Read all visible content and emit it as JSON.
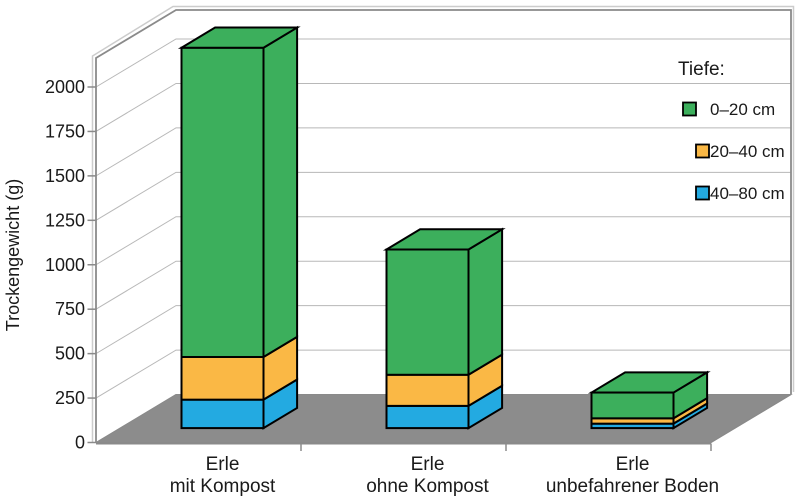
{
  "chart_data": {
    "type": "bar",
    "variant": "3d-stacked-column",
    "title": "",
    "ylabel": "Trockengewicht (g)",
    "categories": [
      {
        "line1": "Erle",
        "line2": "mit Kompost"
      },
      {
        "line1": "Erle",
        "line2": "ohne Kompost"
      },
      {
        "line1": "Erle",
        "line2": "unbefahrener Boden"
      }
    ],
    "series": [
      {
        "name": "0–20 cm",
        "color": "#3caf5c",
        "values": [
          1740,
          705,
          145
        ]
      },
      {
        "name": "20–40 cm",
        "color": "#fab845",
        "values": [
          240,
          175,
          30
        ]
      },
      {
        "name": "40–80 cm",
        "color": "#23aae1",
        "values": [
          160,
          125,
          25
        ]
      }
    ],
    "stack_bottom_to_top": [
      "40–80 cm",
      "20–40 cm",
      "0–20 cm"
    ],
    "totals": [
      2140,
      1005,
      200
    ],
    "yticks": [
      0,
      250,
      500,
      750,
      1000,
      1250,
      1500,
      1750,
      2000
    ],
    "ylim": [
      0,
      2160
    ],
    "unit": "g",
    "grid": true,
    "legend": {
      "title": "Tiefe:",
      "entries": [
        "0–20 cm",
        "20–40 cm",
        "40–80 cm"
      ],
      "position": "top-right"
    },
    "colors": {
      "wall": "#ffffff",
      "floor": "#8c8c8c",
      "gridline": "#b8b8b8",
      "frame": "#8a8a8a",
      "frame_highlight": "#cccccc",
      "bar_outline": "#000000",
      "text": "#1a1a1a"
    }
  }
}
